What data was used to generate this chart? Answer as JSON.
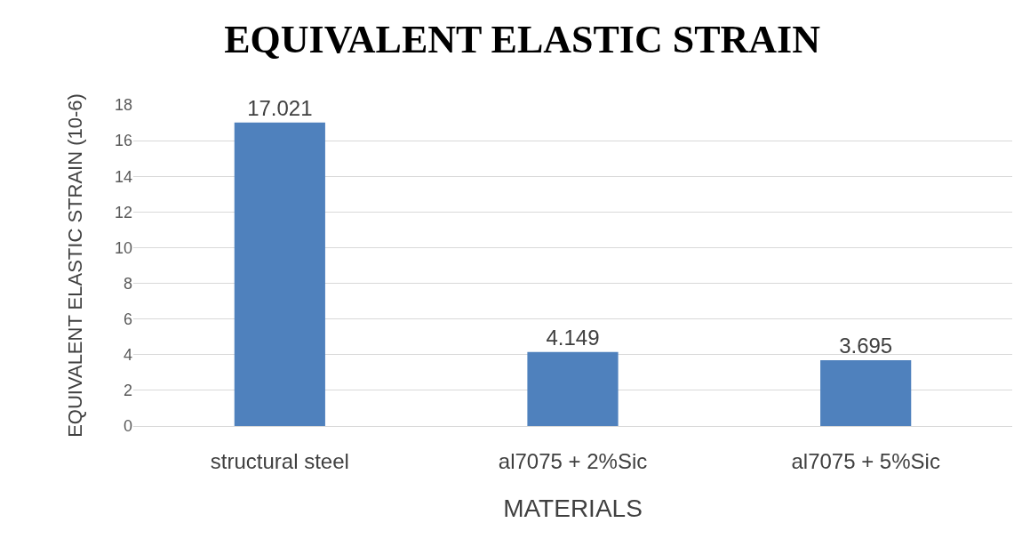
{
  "chart_data": {
    "type": "bar",
    "title": "EQUIVALENT ELASTIC STRAIN",
    "xlabel": "MATERIALS",
    "ylabel": "EQUIVALENT ELASTIC STRAIN (10-6)",
    "categories": [
      "structural steel",
      "al7075 + 2%Sic",
      "al7075 + 5%Sic"
    ],
    "values": [
      17.021,
      4.149,
      3.695
    ],
    "color": "#4f81bd",
    "ylim": [
      0,
      18
    ],
    "yticks": [
      0,
      2,
      4,
      6,
      8,
      10,
      12,
      14,
      16,
      18
    ],
    "grid": "y",
    "data_labels": true
  }
}
